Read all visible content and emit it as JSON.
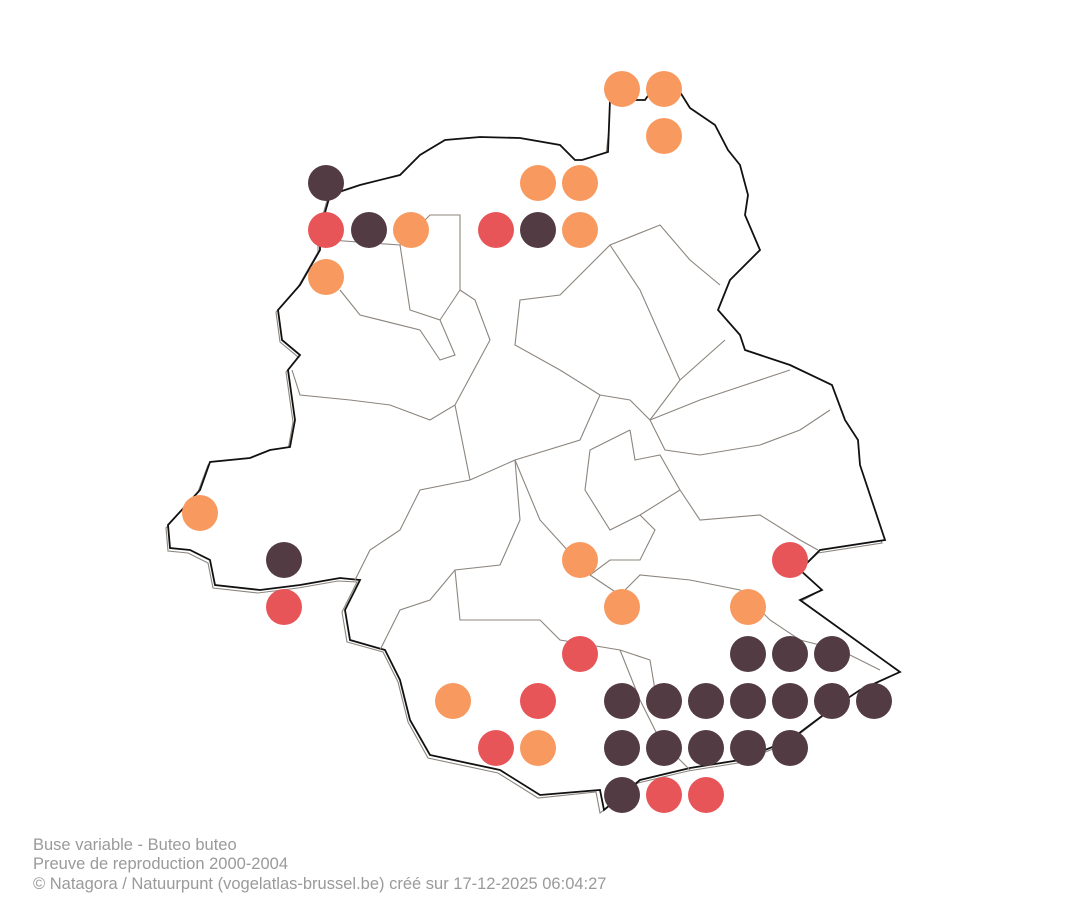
{
  "caption": {
    "species": "Buse variable - Buteo buteo",
    "period": "Preuve de reproduction 2000-2004",
    "credit": "© Natagora / Natuurpunt (vogelatlas-brussel.be) créé sur 17-12-2025 06:04:27"
  }
}
